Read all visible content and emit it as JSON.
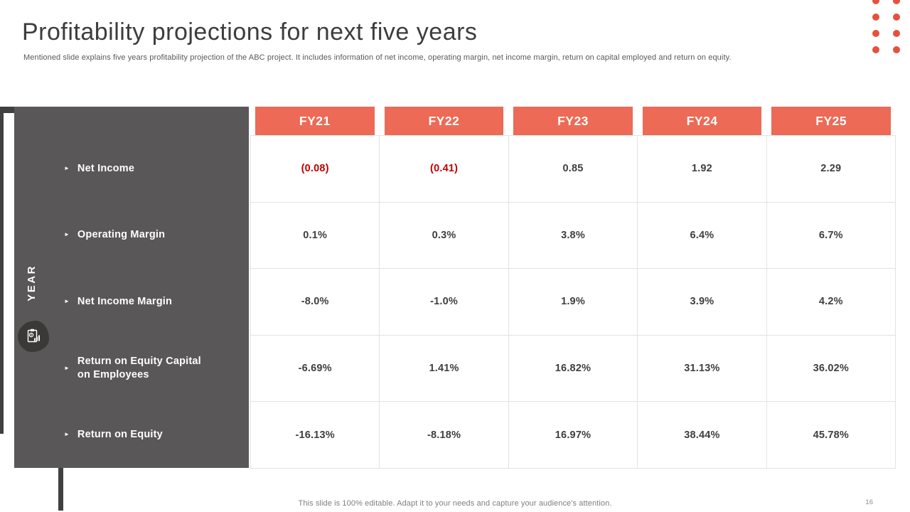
{
  "slide": {
    "title": "Profitability projections for next five years",
    "subtitle": "Mentioned slide explains five years profitability projection of the ABC project. It includes information of net income, operating margin, net income margin, return on capital employed and return on equity.",
    "footer_note": "This slide is 100% editable. Adapt it to your needs and capture your audience's attention.",
    "page_number": "16"
  },
  "table": {
    "axis_label": "YEAR",
    "columns": [
      "FY21",
      "FY22",
      "FY23",
      "FY24",
      "FY25"
    ],
    "rows": [
      {
        "label": "Net Income",
        "values": [
          "(0.08)",
          "(0.41)",
          "0.85",
          "1.92",
          "2.29"
        ],
        "red": [
          0,
          1
        ]
      },
      {
        "label": "Operating Margin",
        "values": [
          "0.1%",
          "0.3%",
          "3.8%",
          "6.4%",
          "6.7%"
        ],
        "red": []
      },
      {
        "label": "Net Income Margin",
        "values": [
          "-8.0%",
          "-1.0%",
          "1.9%",
          "3.9%",
          "4.2%"
        ],
        "red": []
      },
      {
        "label": "Return on Equity Capital on Employees",
        "values": [
          "-6.69%",
          "1.41%",
          "16.82%",
          "31.13%",
          "36.02%"
        ],
        "red": []
      },
      {
        "label": "Return on Equity",
        "values": [
          "-16.13%",
          "-8.18%",
          "16.97%",
          "38.44%",
          "45.78%"
        ],
        "red": []
      }
    ]
  },
  "icons": {
    "bullet": "►",
    "panel_icon": "finance-report-icon",
    "decor": "dot-grid"
  },
  "decor": {
    "dot_rows": 4,
    "dot_cols": 2
  },
  "colors": {
    "accent": "#ec6a56",
    "dots": "#e5513e",
    "panel": "#595757",
    "frame": "#404040",
    "icon-blob": "#3a3938",
    "negative": "#c00000",
    "cell-text": "#3f3f3f",
    "grid-line": "#e3e3e3"
  }
}
